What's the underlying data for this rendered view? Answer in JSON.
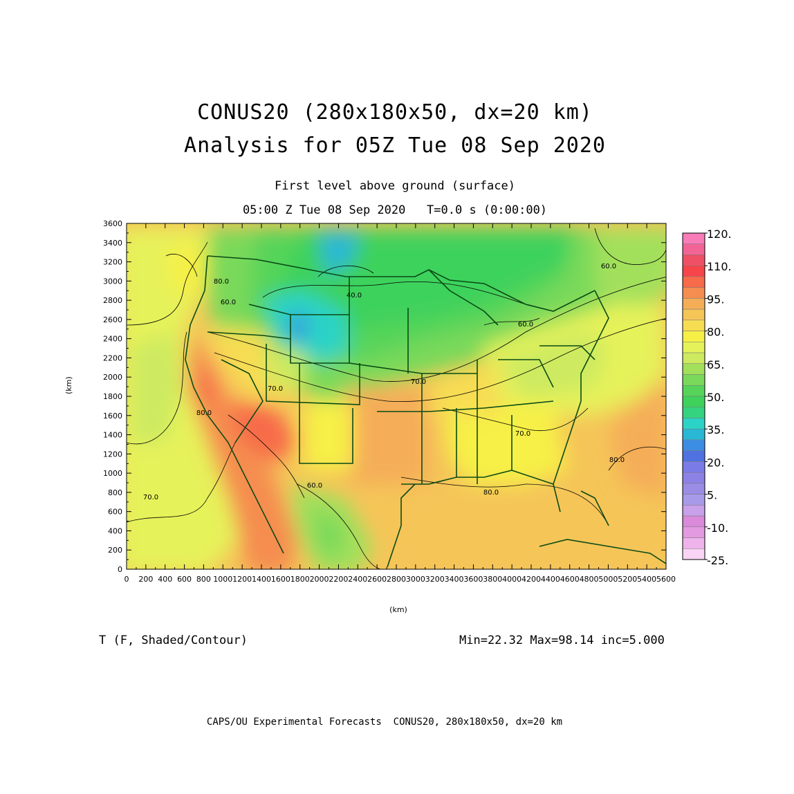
{
  "header": {
    "title_line1": "CONUS20 (280x180x50, dx=20 km)",
    "title_line2": "Analysis for 05Z Tue 08 Sep 2020",
    "subtitle_line1": "First level above ground (surface)",
    "subtitle_line2": "05:00 Z Tue 08 Sep 2020   T=0.0 s (0:00:00)"
  },
  "axes": {
    "x_label": "(km)",
    "y_label": "(km)",
    "x_range": [
      0,
      5600
    ],
    "y_range": [
      0,
      3600
    ],
    "x_ticks": [
      "0",
      "200",
      "400",
      "600",
      "800",
      "1000",
      "1200",
      "1400",
      "1600",
      "1800",
      "2000",
      "2200",
      "2400",
      "2600",
      "2800",
      "3000",
      "3200",
      "3400",
      "3600",
      "3800",
      "4000",
      "4200",
      "4400",
      "4600",
      "4800",
      "5000",
      "5200",
      "5400",
      "5600"
    ],
    "y_ticks": [
      "0",
      "200",
      "400",
      "600",
      "800",
      "1000",
      "1200",
      "1400",
      "1600",
      "1800",
      "2000",
      "2200",
      "2400",
      "2600",
      "2800",
      "3000",
      "3200",
      "3400",
      "3600"
    ]
  },
  "colorbar": {
    "colors": [
      "#f9d4f4",
      "#efb3ec",
      "#e39ae0",
      "#d98ad9",
      "#c9a0ea",
      "#a79be9",
      "#9b8ce6",
      "#8c82e6",
      "#7b7be8",
      "#4f72e0",
      "#3b8ee3",
      "#29b7d6",
      "#2bd3c6",
      "#34d37f",
      "#3ed25c",
      "#56d45a",
      "#7ad95a",
      "#a2e05c",
      "#cdea60",
      "#e6f25a",
      "#f6f046",
      "#f7dd52",
      "#f5c558",
      "#f5ad58",
      "#f58d50",
      "#f76a4a",
      "#f7444a",
      "#f05066",
      "#f26496",
      "#f77cb8"
    ],
    "labels": [
      "120.",
      "110.",
      "95.",
      "80.",
      "65.",
      "50.",
      "35.",
      "20.",
      "5.",
      "-10.",
      "-25."
    ]
  },
  "contour_labels": [
    "80.0",
    "60.0",
    "40.0",
    "70.0",
    "60.0",
    "80.0",
    "70.0",
    "70.0",
    "80.0",
    "80.0",
    "60.0",
    "60.0",
    "70.0"
  ],
  "legend": {
    "variable": "T (F, Shaded/Contour)",
    "stats": "Min=22.32 Max=98.14 inc=5.000"
  },
  "footer": "CAPS/OU Experimental Forecasts  CONUS20, 280x180x50, dx=20 km"
}
